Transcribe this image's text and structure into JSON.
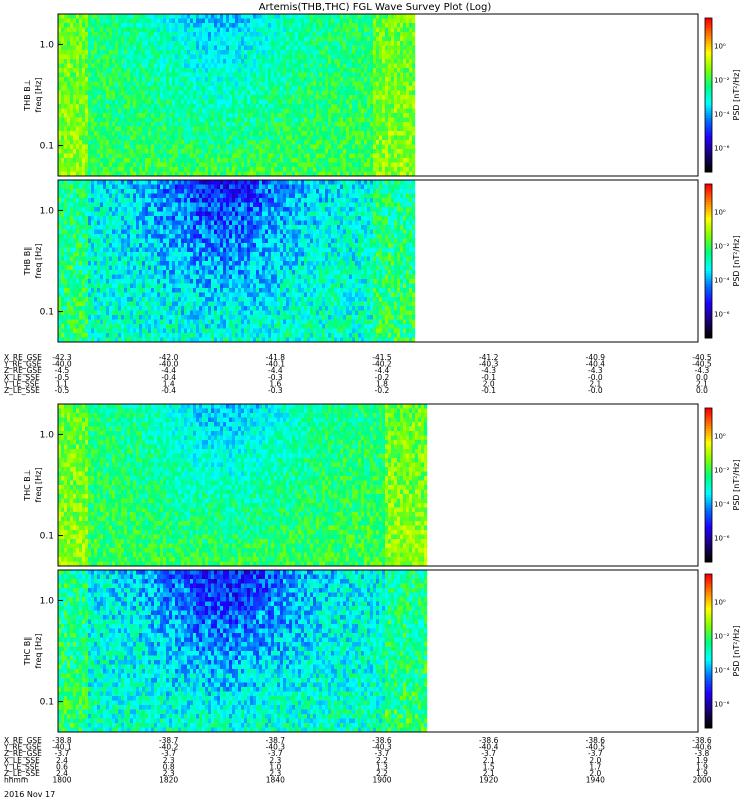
{
  "chart_data": {
    "type": "heatmap",
    "title": "Artemis(THB,THC) FGL Wave Survey Plot (Log)",
    "colorbar_label": "PSD [nT²/Hz]",
    "colorbar_ticks": [
      "10⁰",
      "10⁻²",
      "10⁻⁴",
      "10⁻⁶"
    ],
    "colormap": [
      "#000000",
      "#1a0078",
      "#2000ff",
      "#0070ff",
      "#00ffff",
      "#00ff80",
      "#7fff00",
      "#ffff00",
      "#ff8000",
      "#ff0000"
    ],
    "freq_ticks": [
      "1.0",
      "0.1"
    ],
    "ylim_hz": [
      0.05,
      2.0
    ],
    "panels": [
      {
        "label": "THB B⊥",
        "ylabel": "freq [Hz]",
        "probe": "THB",
        "data_end_fraction": 0.56,
        "character": "green-yellow dominant, blue patches in middle at high freq"
      },
      {
        "label": "THB B∥",
        "ylabel": "freq [Hz]",
        "probe": "THB",
        "data_end_fraction": 0.56,
        "character": "cyan/blue dominant with blue speckle"
      },
      {
        "label": "THC B⊥",
        "ylabel": "freq [Hz]",
        "probe": "THC",
        "data_end_fraction": 0.58,
        "character": "green-yellow dominant, cyan patch in middle"
      },
      {
        "label": "THC B∥",
        "ylabel": "freq [Hz]",
        "probe": "THC",
        "data_end_fraction": 0.58,
        "character": "cyan/blue dominant"
      }
    ],
    "ephemeris_thb": {
      "rows": [
        {
          "label": "X_RE_GSE",
          "values": [
            "-42.3",
            "-42.0",
            "-41.8",
            "-41.5",
            "-41.2",
            "-40.9",
            "-40.5"
          ]
        },
        {
          "label": "Y_RE_GSE",
          "values": [
            "-40.0",
            "-40.0",
            "-40.1",
            "-40.2",
            "-40.3",
            "-40.4",
            "-40.5"
          ]
        },
        {
          "label": "Z_RE_GSE",
          "values": [
            "-4.5",
            "-4.4",
            "-4.4",
            "-4.4",
            "-4.3",
            "-4.3",
            "-4.3"
          ]
        },
        {
          "label": "X_LE_SSE",
          "values": [
            "-0.5",
            "-0.4",
            "-0.3",
            "-0.2",
            "-0.1",
            "-0.0",
            "0.0"
          ]
        },
        {
          "label": "Y_LE_SSE",
          "values": [
            "1.1",
            "1.4",
            "1.6",
            "1.8",
            "2.0",
            "2.1",
            "2.1"
          ]
        },
        {
          "label": "Z_LE_SSE",
          "values": [
            "-0.5",
            "-0.4",
            "-0.3",
            "-0.2",
            "-0.1",
            "-0.0",
            "0.0"
          ]
        }
      ]
    },
    "ephemeris_thc": {
      "rows": [
        {
          "label": "X_RE_GSE",
          "values": [
            "-38.8",
            "-38.7",
            "-38.7",
            "-38.6",
            "-38.6",
            "-38.6",
            "-38.6"
          ]
        },
        {
          "label": "Y_RE_GSE",
          "values": [
            "-40.1",
            "-40.2",
            "-40.3",
            "-40.3",
            "-40.4",
            "-40.5",
            "-40.6"
          ]
        },
        {
          "label": "Z_RE_GSE",
          "values": [
            "-3.7",
            "-3.7",
            "-3.7",
            "-3.7",
            "-3.7",
            "-3.7",
            "-3.8"
          ]
        },
        {
          "label": "X_LE_SSE",
          "values": [
            "2.4",
            "2.3",
            "2.3",
            "2.2",
            "2.1",
            "2.0",
            "1.9"
          ]
        },
        {
          "label": "Y_LE_SSE",
          "values": [
            "0.6",
            "0.8",
            "1.0",
            "1.3",
            "1.5",
            "1.7",
            "1.9"
          ]
        },
        {
          "label": "Z_LE_SSE",
          "values": [
            "2.4",
            "2.3",
            "2.3",
            "2.2",
            "2.1",
            "2.0",
            "1.9"
          ]
        },
        {
          "label": "hhmm",
          "values": [
            "1800",
            "1820",
            "1840",
            "1900",
            "1920",
            "1940",
            "2000"
          ]
        }
      ]
    },
    "date_label": "2016 Nov 17"
  }
}
